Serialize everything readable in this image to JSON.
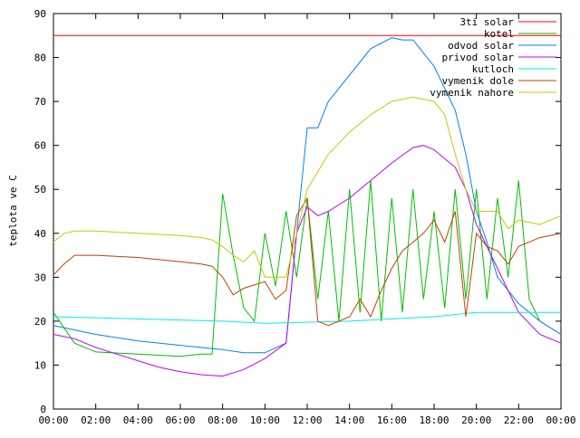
{
  "chart_data": {
    "type": "line",
    "ylabel": "teplota ve C",
    "xlim": [
      0,
      24
    ],
    "ylim": [
      0,
      90
    ],
    "xticks": [
      {
        "value": 0,
        "label": "00:00"
      },
      {
        "value": 2,
        "label": "02:00"
      },
      {
        "value": 4,
        "label": "04:00"
      },
      {
        "value": 6,
        "label": "06:00"
      },
      {
        "value": 8,
        "label": "08:00"
      },
      {
        "value": 10,
        "label": "10:00"
      },
      {
        "value": 12,
        "label": "12:00"
      },
      {
        "value": 14,
        "label": "14:00"
      },
      {
        "value": 16,
        "label": "16:00"
      },
      {
        "value": 18,
        "label": "18:00"
      },
      {
        "value": 20,
        "label": "20:00"
      },
      {
        "value": 22,
        "label": "22:00"
      },
      {
        "value": 24,
        "label": "00:00"
      }
    ],
    "yticks": [
      0,
      10,
      20,
      30,
      40,
      50,
      60,
      70,
      80,
      90
    ],
    "legend": "top-right",
    "series": [
      {
        "name": "3ti solar",
        "color": "#ff0000",
        "x": [
          0,
          24
        ],
        "values": [
          85,
          85
        ]
      },
      {
        "name": "kotel",
        "color": "#00c000",
        "x": [
          0,
          1,
          2,
          4,
          6,
          7,
          7.5,
          8,
          8.5,
          9,
          9.5,
          10,
          10.5,
          11,
          11.5,
          12,
          12.5,
          13,
          13.5,
          14,
          14.5,
          15,
          15.5,
          16,
          16.5,
          17,
          17.5,
          18,
          18.5,
          19,
          19.5,
          20,
          20.5,
          21,
          21.5,
          22,
          22.5,
          23,
          24
        ],
        "values": [
          22,
          15,
          13,
          12.5,
          12,
          12.5,
          12.5,
          49,
          35,
          23,
          20,
          40,
          28,
          45,
          30,
          48,
          25,
          45,
          20,
          50,
          22,
          52,
          20,
          48,
          22,
          50,
          25,
          45,
          23,
          50,
          25,
          50,
          25,
          48,
          30,
          52,
          25,
          20,
          17
        ]
      },
      {
        "name": "odvod solar",
        "color": "#0080ff",
        "x": [
          0,
          1,
          2,
          4,
          6,
          8,
          9,
          10,
          11,
          11.5,
          12,
          12.5,
          13,
          14,
          15,
          16,
          16.5,
          17,
          18,
          19,
          19.5,
          20,
          20.5,
          21,
          22,
          23,
          24
        ],
        "values": [
          19,
          18,
          17,
          15.5,
          14.5,
          13.5,
          12.8,
          12.8,
          15,
          40,
          64,
          64,
          70,
          76,
          82,
          84.5,
          84,
          84,
          78,
          68,
          58,
          45,
          38,
          30,
          24,
          20,
          17
        ]
      },
      {
        "name": "privod solar",
        "color": "#c000ff",
        "x": [
          0,
          1,
          2,
          3,
          4,
          5,
          6,
          7,
          8,
          9,
          10,
          11,
          11.5,
          12,
          12.5,
          13,
          14,
          15,
          16,
          17,
          17.5,
          18,
          19,
          19.5,
          20,
          21,
          22,
          23,
          24
        ],
        "values": [
          17,
          16,
          14,
          12.5,
          11,
          9.5,
          8.5,
          7.8,
          7.5,
          9,
          11.5,
          15,
          40,
          46,
          44,
          45,
          48,
          52,
          56,
          59.5,
          60,
          59,
          55,
          50,
          42,
          32,
          22,
          17,
          15
        ]
      },
      {
        "name": "kutloch",
        "color": "#00eeee",
        "x": [
          0,
          8,
          10,
          14,
          18,
          20,
          24
        ],
        "values": [
          21,
          20,
          19.5,
          20,
          21,
          22,
          22
        ]
      },
      {
        "name": "vymenik dole",
        "color": "#c04000",
        "x": [
          0,
          0.5,
          1,
          2,
          4,
          6,
          7,
          7.5,
          8,
          8.5,
          9,
          10,
          10.5,
          11,
          11.5,
          12,
          12.5,
          13,
          14,
          14.5,
          15,
          15.5,
          16,
          16.5,
          17,
          17.5,
          18,
          18.5,
          19,
          19.5,
          20,
          20.5,
          21,
          21.5,
          22,
          23,
          24
        ],
        "values": [
          30.5,
          33,
          35,
          35,
          34.5,
          33.5,
          33,
          32.5,
          30,
          26,
          27.5,
          29,
          25,
          27,
          44,
          48,
          20,
          19,
          21,
          25,
          21,
          27,
          32,
          36,
          38,
          40,
          43,
          38,
          45,
          21,
          40,
          37,
          36,
          33,
          37,
          39,
          40
        ]
      },
      {
        "name": "vymenik nahore",
        "color": "#c8c800",
        "x": [
          0,
          0.5,
          1,
          2,
          4,
          6,
          7,
          7.5,
          8,
          8.5,
          9,
          9.5,
          10,
          11,
          12,
          12.5,
          13,
          14,
          15,
          16,
          17,
          18,
          18.5,
          19,
          19.5,
          20,
          21,
          21.5,
          22,
          23,
          24
        ],
        "values": [
          38,
          40,
          40.5,
          40.5,
          40,
          39.5,
          39,
          38.5,
          37,
          35,
          33.5,
          36,
          30,
          30,
          50,
          54,
          58,
          63,
          67,
          70,
          71,
          70,
          67,
          58,
          50,
          45,
          45,
          41,
          43,
          42,
          44
        ]
      }
    ]
  }
}
